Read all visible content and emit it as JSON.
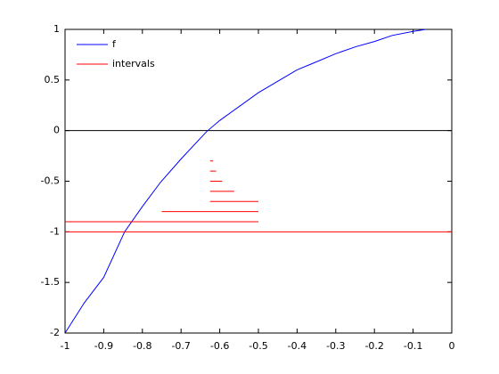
{
  "chart_data": {
    "type": "line",
    "xlim": [
      -1,
      0
    ],
    "ylim": [
      -2,
      1
    ],
    "xticks": [
      -1,
      -0.9,
      -0.8,
      -0.7,
      -0.6,
      -0.5,
      -0.4,
      -0.3,
      -0.2,
      -0.1,
      0
    ],
    "yticks": [
      -2,
      -1.5,
      -1,
      -0.5,
      0,
      0.5,
      1
    ],
    "legend": "upper-left",
    "reference_line": {
      "y": 0,
      "color": "#000000"
    },
    "series": [
      {
        "name": "f",
        "color": "#0000ff",
        "x": [
          -1,
          -0.95,
          -0.9,
          -0.846,
          -0.8,
          -0.753,
          -0.7,
          -0.634,
          -0.6,
          -0.5,
          -0.4,
          -0.362,
          -0.3,
          -0.247,
          -0.2,
          -0.154,
          -0.1,
          -0.067
        ],
        "values": [
          -2,
          -1.7,
          -1.45,
          -1.0,
          -0.75,
          -0.51,
          -0.28,
          -0.01,
          0.1,
          0.375,
          0.6,
          0.66,
          0.76,
          0.83,
          0.88,
          0.94,
          0.98,
          1.0
        ]
      },
      {
        "name": "intervals",
        "color": "#ff0000",
        "segments": [
          {
            "x": [
              -1,
              0
            ],
            "y": -1
          },
          {
            "x": [
              -1,
              -0.5
            ],
            "y": -0.9
          },
          {
            "x": [
              -0.75,
              -0.5
            ],
            "y": -0.8
          },
          {
            "x": [
              -0.625,
              -0.5
            ],
            "y": -0.7
          },
          {
            "x": [
              -0.625,
              -0.5625
            ],
            "y": -0.6
          },
          {
            "x": [
              -0.625,
              -0.59375
            ],
            "y": -0.5
          },
          {
            "x": [
              -0.625,
              -0.609375
            ],
            "y": -0.4
          },
          {
            "x": [
              -0.625,
              -0.6171875
            ],
            "y": -0.3
          }
        ]
      }
    ]
  }
}
